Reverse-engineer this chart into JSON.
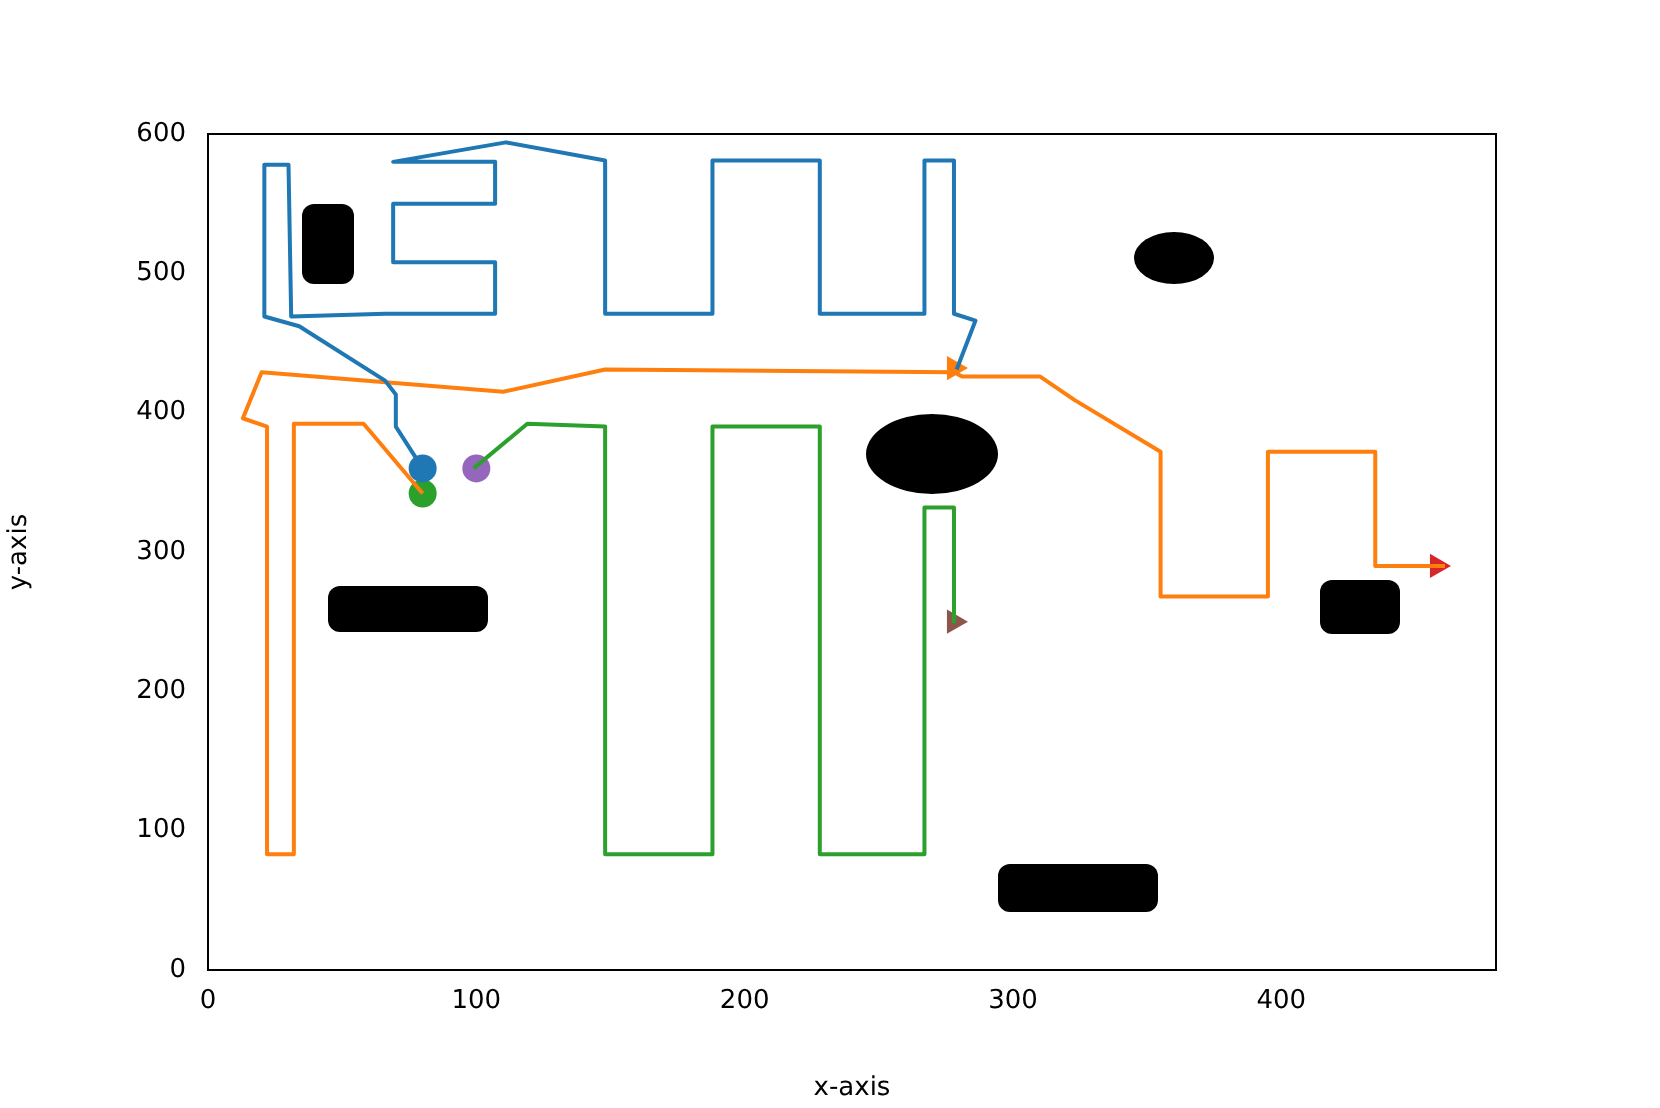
{
  "chart_data": {
    "type": "line",
    "xlabel": "x-axis",
    "ylabel": "y-axis",
    "xlim": [
      0,
      480
    ],
    "ylim": [
      0,
      600
    ],
    "xticks": [
      0,
      100,
      200,
      300,
      400
    ],
    "yticks": [
      0,
      100,
      200,
      300,
      400,
      500,
      600
    ],
    "grid": false,
    "legend": false,
    "line_style": "solid",
    "series": [
      {
        "color": "#1f77b4",
        "marker": "none",
        "x": [
          80,
          70,
          70,
          66,
          34,
          21,
          21,
          30,
          31,
          66,
          107,
          107,
          69,
          69,
          107,
          107,
          69,
          111,
          148,
          148,
          188,
          188,
          228,
          228,
          267,
          267,
          278,
          278,
          286,
          279
        ],
        "values": [
          360,
          390,
          413,
          423,
          462,
          469,
          578,
          578,
          469,
          471,
          471,
          508,
          508,
          550,
          550,
          580,
          580,
          594,
          581,
          471,
          471,
          581,
          581,
          471,
          471,
          581,
          581,
          471,
          466,
          431
        ]
      },
      {
        "color": "#ff7f0e",
        "marker": "none",
        "x": [
          80,
          58,
          32,
          32,
          22,
          22,
          13,
          20,
          110,
          148,
          278,
          281,
          310,
          323,
          355,
          355,
          395,
          395,
          435,
          435,
          461
        ],
        "values": [
          342,
          392,
          392,
          83,
          83,
          390,
          396,
          429,
          415,
          431,
          429,
          426,
          426,
          409,
          372,
          268,
          268,
          372,
          372,
          290,
          290
        ]
      },
      {
        "color": "#2ca02c",
        "marker": "none",
        "x": [
          99,
          119,
          148,
          148,
          188,
          188,
          228,
          228,
          267,
          267,
          278,
          278
        ],
        "values": [
          360,
          392,
          390,
          83,
          83,
          390,
          390,
          83,
          83,
          332,
          332,
          250
        ]
      },
      {
        "type": "scatter",
        "color": "#1f77b4",
        "marker": "circle",
        "x": [
          80
        ],
        "values": [
          360
        ]
      },
      {
        "type": "scatter",
        "color": "#ff7f0e",
        "marker": "triangle",
        "x": [
          278
        ],
        "values": [
          432
        ]
      },
      {
        "type": "scatter",
        "color": "#2ca02c",
        "marker": "circle",
        "x": [
          80
        ],
        "values": [
          342
        ]
      },
      {
        "type": "scatter",
        "color": "#d62728",
        "marker": "triangle",
        "x": [
          458
        ],
        "values": [
          290
        ]
      },
      {
        "type": "scatter",
        "color": "#9467bd",
        "marker": "circle",
        "x": [
          100
        ],
        "values": [
          360
        ]
      },
      {
        "type": "scatter",
        "color": "#8c564b",
        "marker": "triangle",
        "x": [
          278
        ],
        "values": [
          250
        ]
      }
    ]
  }
}
